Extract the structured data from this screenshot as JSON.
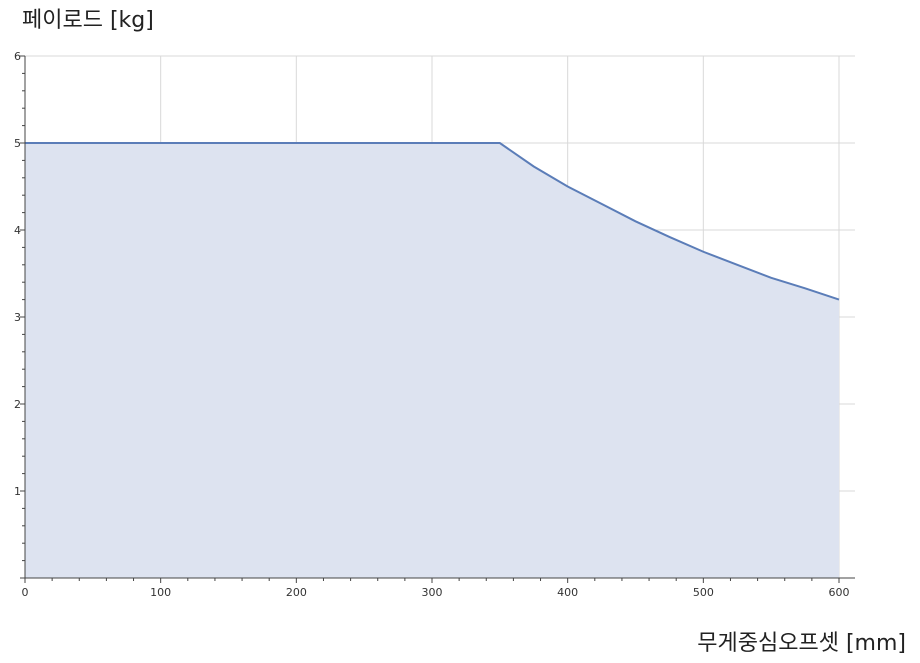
{
  "chart_data": {
    "type": "area",
    "xlabel": "무게중심오프셋 [mm]",
    "ylabel": "페이로드 [kg]",
    "xlim": [
      0,
      600
    ],
    "ylim": [
      0,
      6
    ],
    "x_ticks": [
      "0",
      "100",
      "200",
      "300",
      "400",
      "500",
      "600"
    ],
    "y_ticks": [
      "1",
      "2",
      "3",
      "4",
      "5",
      "6"
    ],
    "grid": true,
    "series": [
      {
        "x": [
          0,
          350,
          375,
          400,
          425,
          450,
          475,
          500,
          525,
          550,
          575,
          600
        ],
        "values": [
          5,
          5,
          4.73,
          4.5,
          4.3,
          4.1,
          3.92,
          3.75,
          3.6,
          3.45,
          3.33,
          3.2
        ],
        "color": "#5b7db8",
        "fill": "#dde3f0"
      }
    ]
  }
}
